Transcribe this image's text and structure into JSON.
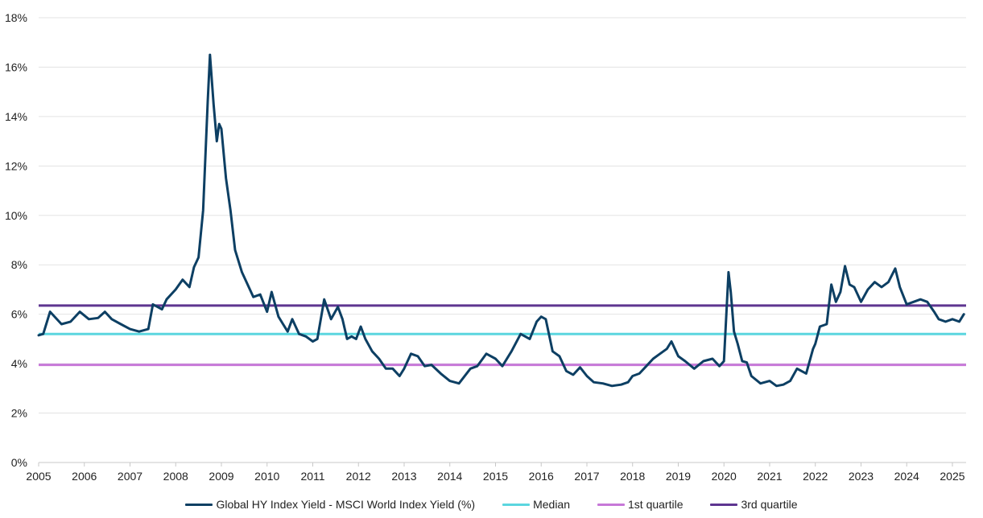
{
  "chart_data": {
    "type": "line",
    "title": "",
    "xlabel": "",
    "ylabel": "",
    "xlim": [
      2005.0,
      2025.3
    ],
    "ylim": [
      0,
      18
    ],
    "x_ticks": [
      "2005",
      "2006",
      "2007",
      "2008",
      "2009",
      "2010",
      "2011",
      "2012",
      "2013",
      "2014",
      "2015",
      "2016",
      "2017",
      "2018",
      "2019",
      "2020",
      "2021",
      "2022",
      "2023",
      "2024",
      "2025"
    ],
    "y_ticks": [
      "0%",
      "2%",
      "4%",
      "6%",
      "8%",
      "10%",
      "12%",
      "14%",
      "16%",
      "18%"
    ],
    "grid": "horizontal",
    "legend_position": "bottom",
    "series": [
      {
        "name": "Global HY Index Yield - MSCI World Index Yield (%)",
        "color": "#0d3f63",
        "kind": "line",
        "x": [
          2005.0,
          2005.1,
          2005.25,
          2005.5,
          2005.7,
          2005.9,
          2006.1,
          2006.3,
          2006.45,
          2006.6,
          2006.8,
          2007.0,
          2007.2,
          2007.4,
          2007.5,
          2007.7,
          2007.8,
          2008.0,
          2008.15,
          2008.3,
          2008.4,
          2008.5,
          2008.6,
          2008.7,
          2008.75,
          2008.83,
          2008.9,
          2008.95,
          2009.0,
          2009.1,
          2009.2,
          2009.3,
          2009.45,
          2009.55,
          2009.7,
          2009.85,
          2010.0,
          2010.1,
          2010.25,
          2010.35,
          2010.45,
          2010.55,
          2010.7,
          2010.85,
          2011.0,
          2011.1,
          2011.25,
          2011.4,
          2011.55,
          2011.65,
          2011.75,
          2011.85,
          2011.95,
          2012.05,
          2012.15,
          2012.3,
          2012.45,
          2012.6,
          2012.75,
          2012.9,
          2013.0,
          2013.15,
          2013.3,
          2013.45,
          2013.6,
          2013.8,
          2014.0,
          2014.2,
          2014.45,
          2014.6,
          2014.8,
          2015.0,
          2015.15,
          2015.35,
          2015.55,
          2015.75,
          2015.9,
          2016.0,
          2016.1,
          2016.25,
          2016.4,
          2016.55,
          2016.7,
          2016.85,
          2017.0,
          2017.15,
          2017.35,
          2017.55,
          2017.75,
          2017.9,
          2018.0,
          2018.15,
          2018.3,
          2018.45,
          2018.6,
          2018.75,
          2018.85,
          2019.0,
          2019.15,
          2019.35,
          2019.55,
          2019.75,
          2019.9,
          2020.0,
          2020.1,
          2020.15,
          2020.22,
          2020.3,
          2020.4,
          2020.5,
          2020.6,
          2020.8,
          2021.0,
          2021.15,
          2021.3,
          2021.45,
          2021.6,
          2021.8,
          2021.95,
          2022.0,
          2022.1,
          2022.25,
          2022.35,
          2022.45,
          2022.55,
          2022.65,
          2022.75,
          2022.85,
          2023.0,
          2023.15,
          2023.3,
          2023.45,
          2023.6,
          2023.75,
          2023.85,
          2024.0,
          2024.15,
          2024.3,
          2024.45,
          2024.6,
          2024.7,
          2024.85,
          2025.0,
          2025.15,
          2025.25
        ],
        "y": [
          5.15,
          5.2,
          6.1,
          5.6,
          5.7,
          6.1,
          5.8,
          5.85,
          6.1,
          5.8,
          5.6,
          5.4,
          5.3,
          5.4,
          6.4,
          6.2,
          6.6,
          7.0,
          7.4,
          7.1,
          7.9,
          8.3,
          10.2,
          14.6,
          16.5,
          14.5,
          13.0,
          13.7,
          13.5,
          11.5,
          10.2,
          8.6,
          7.7,
          7.3,
          6.7,
          6.8,
          6.1,
          6.9,
          5.9,
          5.6,
          5.3,
          5.8,
          5.2,
          5.1,
          4.9,
          5.0,
          6.6,
          5.8,
          6.3,
          5.8,
          5.0,
          5.1,
          5.0,
          5.5,
          5.0,
          4.5,
          4.2,
          3.8,
          3.8,
          3.5,
          3.8,
          4.4,
          4.3,
          3.9,
          3.95,
          3.6,
          3.3,
          3.2,
          3.8,
          3.9,
          4.4,
          4.2,
          3.9,
          4.5,
          5.2,
          5.0,
          5.7,
          5.9,
          5.8,
          4.5,
          4.3,
          3.7,
          3.55,
          3.85,
          3.5,
          3.25,
          3.2,
          3.1,
          3.15,
          3.25,
          3.5,
          3.6,
          3.9,
          4.2,
          4.4,
          4.6,
          4.9,
          4.3,
          4.1,
          3.8,
          4.1,
          4.2,
          3.9,
          4.1,
          7.7,
          6.9,
          5.3,
          4.8,
          4.1,
          4.05,
          3.5,
          3.2,
          3.3,
          3.1,
          3.15,
          3.3,
          3.8,
          3.6,
          4.6,
          4.8,
          5.5,
          5.6,
          7.2,
          6.5,
          6.9,
          7.95,
          7.2,
          7.1,
          6.5,
          7.0,
          7.3,
          7.1,
          7.3,
          7.85,
          7.1,
          6.4,
          6.5,
          6.6,
          6.5,
          6.1,
          5.8,
          5.7,
          5.8,
          5.7,
          6.0
        ]
      },
      {
        "name": "Median",
        "color": "#5bd6df",
        "kind": "hline",
        "value": 5.2
      },
      {
        "name": "1st quartile",
        "color": "#c778d8",
        "kind": "hline",
        "value": 3.95
      },
      {
        "name": "3rd quartile",
        "color": "#5e3590",
        "kind": "hline",
        "value": 6.35
      }
    ]
  }
}
